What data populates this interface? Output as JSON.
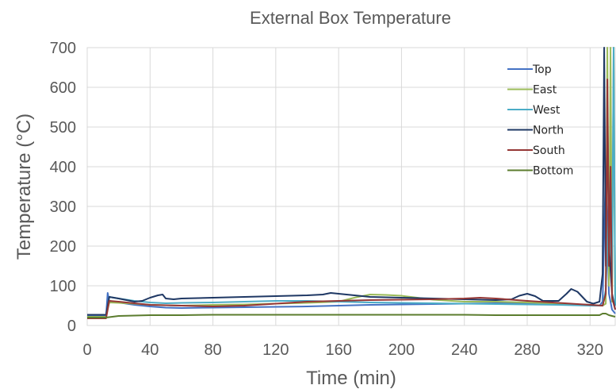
{
  "chart_data": {
    "type": "line",
    "title": "External Box Temperature",
    "xlabel": "Time (min)",
    "ylabel": "Temperature (°C)",
    "xlim": [
      0,
      336
    ],
    "ylim": [
      0,
      700
    ],
    "xticks": [
      0,
      40,
      80,
      120,
      160,
      200,
      240,
      280,
      320
    ],
    "yticks": [
      0,
      100,
      200,
      300,
      400,
      500,
      600,
      700
    ],
    "grid": true,
    "legend_position": "top-right",
    "series": [
      {
        "name": "Top",
        "color": "#4472C4",
        "x": [
          0,
          12,
          13,
          14,
          20,
          30,
          40,
          50,
          60,
          80,
          100,
          120,
          140,
          160,
          180,
          200,
          220,
          240,
          260,
          280,
          300,
          320,
          326,
          328,
          330,
          332,
          334,
          336
        ],
        "y": [
          25,
          25,
          82,
          62,
          58,
          52,
          48,
          45,
          44,
          45,
          46,
          47,
          48,
          50,
          52,
          53,
          54,
          55,
          56,
          56,
          55,
          52,
          50,
          60,
          400,
          80,
          40,
          30
        ]
      },
      {
        "name": "East",
        "color": "#9BBB59",
        "x": [
          0,
          12,
          14,
          20,
          30,
          40,
          60,
          80,
          100,
          120,
          140,
          160,
          170,
          180,
          190,
          200,
          210,
          220,
          240,
          260,
          280,
          300,
          320,
          328,
          330,
          331,
          332,
          333,
          334,
          335,
          336
        ],
        "y": [
          22,
          22,
          58,
          57,
          55,
          52,
          50,
          52,
          53,
          55,
          57,
          60,
          70,
          78,
          77,
          75,
          70,
          65,
          60,
          60,
          58,
          55,
          52,
          50,
          55,
          700,
          100,
          700,
          60,
          700,
          50
        ]
      },
      {
        "name": "West",
        "color": "#4BACC6",
        "x": [
          0,
          12,
          14,
          20,
          30,
          40,
          50,
          60,
          80,
          100,
          120,
          140,
          160,
          180,
          200,
          220,
          240,
          260,
          280,
          300,
          320,
          328,
          330,
          332,
          334,
          335,
          336
        ],
        "y": [
          20,
          20,
          72,
          68,
          62,
          58,
          56,
          57,
          58,
          60,
          62,
          62,
          60,
          58,
          57,
          56,
          55,
          54,
          53,
          52,
          50,
          50,
          90,
          300,
          120,
          700,
          50
        ]
      },
      {
        "name": "North",
        "color": "#1F3864",
        "x": [
          0,
          12,
          14,
          20,
          30,
          35,
          40,
          45,
          48,
          50,
          55,
          60,
          80,
          100,
          120,
          140,
          150,
          155,
          160,
          170,
          180,
          200,
          220,
          240,
          260,
          270,
          275,
          280,
          285,
          290,
          300,
          305,
          308,
          312,
          318,
          322,
          326,
          328,
          329,
          330,
          331,
          332,
          334,
          336
        ],
        "y": [
          27,
          27,
          72,
          68,
          60,
          62,
          70,
          76,
          78,
          68,
          66,
          68,
          70,
          72,
          74,
          76,
          78,
          82,
          80,
          76,
          72,
          70,
          68,
          66,
          64,
          66,
          75,
          80,
          74,
          62,
          62,
          80,
          92,
          85,
          60,
          55,
          60,
          130,
          700,
          150,
          550,
          200,
          80,
          40
        ]
      },
      {
        "name": "South",
        "color": "#953735",
        "x": [
          0,
          12,
          14,
          20,
          30,
          40,
          60,
          80,
          100,
          120,
          140,
          160,
          180,
          200,
          220,
          240,
          250,
          260,
          280,
          300,
          320,
          328,
          330,
          331,
          332,
          333,
          334,
          336
        ],
        "y": [
          18,
          18,
          62,
          60,
          56,
          52,
          50,
          48,
          50,
          55,
          60,
          62,
          64,
          65,
          66,
          68,
          70,
          68,
          62,
          57,
          52,
          50,
          80,
          620,
          150,
          400,
          70,
          40
        ]
      },
      {
        "name": "Bottom",
        "color": "#5B7C2E",
        "x": [
          0,
          12,
          20,
          30,
          40,
          60,
          80,
          100,
          120,
          140,
          160,
          180,
          200,
          220,
          240,
          260,
          280,
          300,
          320,
          326,
          328,
          330,
          332,
          334,
          336
        ],
        "y": [
          20,
          20,
          24,
          25,
          26,
          26,
          27,
          27,
          27,
          27,
          27,
          27,
          27,
          27,
          27,
          26,
          26,
          26,
          26,
          26,
          30,
          30,
          26,
          24,
          22
        ]
      }
    ]
  }
}
